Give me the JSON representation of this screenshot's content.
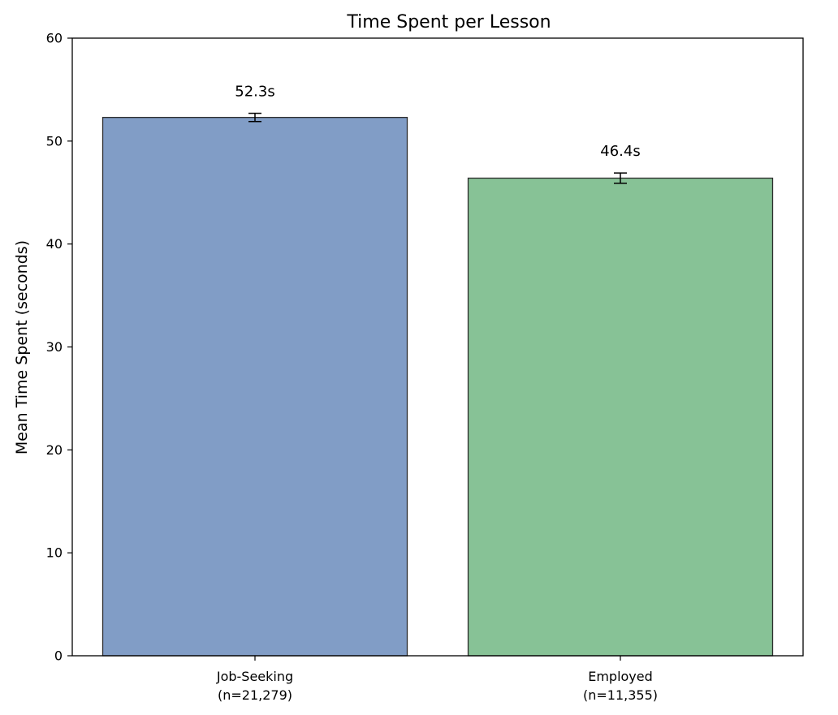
{
  "chart_data": {
    "type": "bar",
    "title": "Time Spent per Lesson",
    "ylabel": "Mean Time Spent (seconds)",
    "xlabel": "",
    "ylim": [
      0,
      60
    ],
    "yticks": [
      0,
      10,
      20,
      30,
      40,
      50,
      60
    ],
    "grid": false,
    "categories": [
      {
        "name": "Job-Seeking",
        "n_label": "(n=21,279)"
      },
      {
        "name": "Employed",
        "n_label": "(n=11,355)"
      }
    ],
    "values": [
      52.3,
      46.4
    ],
    "error": [
      0.4,
      0.5
    ],
    "value_labels": [
      "52.3s",
      "46.4s"
    ],
    "colors": [
      "#819dc6",
      "#87c296"
    ],
    "edge_color": "#2b2b2b"
  }
}
